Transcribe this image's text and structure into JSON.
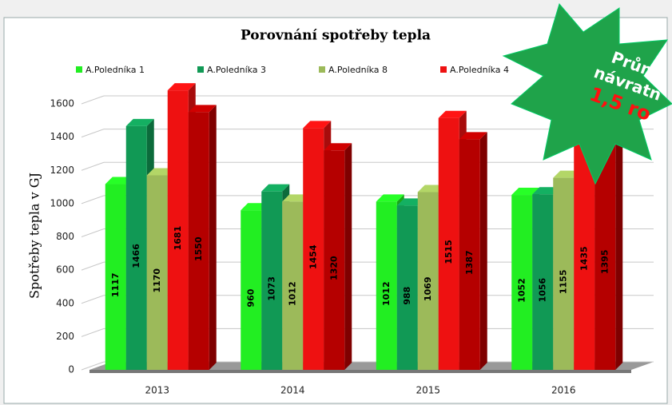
{
  "chart_data": {
    "type": "bar3d",
    "title": "Porovnání spotřeby tepla",
    "y_label": "Spotřeby tepla v GJ",
    "categories": [
      "2013",
      "2014",
      "2015",
      "2016"
    ],
    "series": [
      {
        "name": "A.Poledníka 1",
        "color": "#22ee22",
        "values": [
          1117,
          960,
          1012,
          1052
        ]
      },
      {
        "name": "A.Poledníka 3",
        "color": "#119955",
        "values": [
          1466,
          1073,
          988,
          1056
        ]
      },
      {
        "name": "A.Poledníka 8",
        "color": "#9cba5a",
        "values": [
          1170,
          1012,
          1069,
          1155
        ]
      },
      {
        "name": "A.Poledníka 4",
        "color": "#ee1111",
        "values": [
          1681,
          1454,
          1515,
          1435
        ]
      },
      {
        "color": "#b50000",
        "values": [
          1550,
          1320,
          1387,
          1395
        ]
      }
    ],
    "ylim": [
      0,
      1600
    ],
    "yticks": [
      0,
      200,
      400,
      600,
      800,
      1000,
      1200,
      1400,
      1600
    ],
    "grid": true,
    "annotations": [
      "Prům",
      "návratn",
      "1,5 ro"
    ]
  }
}
